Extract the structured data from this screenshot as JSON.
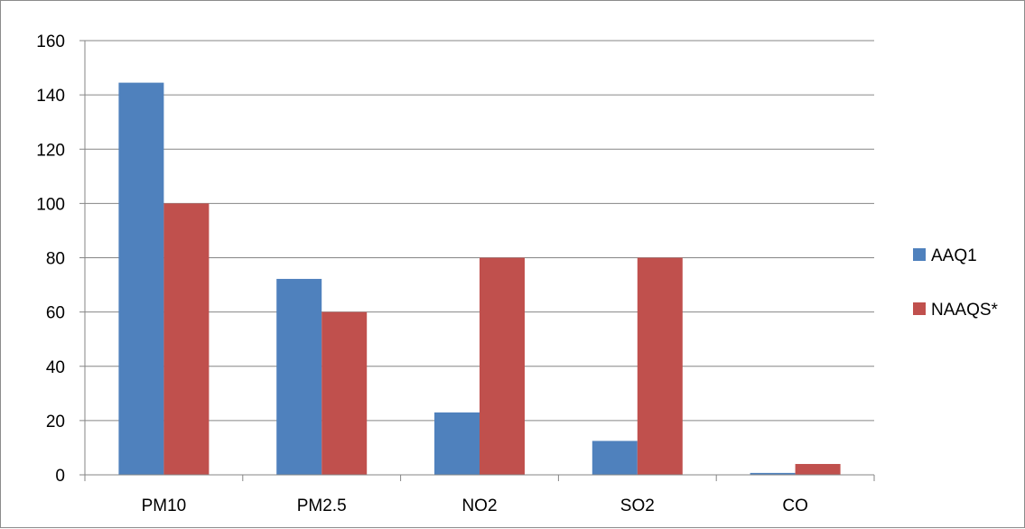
{
  "chart_data": {
    "type": "bar",
    "categories": [
      "PM10",
      "PM2.5",
      "NO2",
      "SO2",
      "CO"
    ],
    "series": [
      {
        "name": "AAQ1",
        "values": [
          144.5,
          72.2,
          23.0,
          12.5,
          0.7
        ],
        "color": "#4F81BD"
      },
      {
        "name": "NAAQS*",
        "values": [
          100,
          60,
          80,
          80,
          4
        ],
        "color": "#C0504D"
      }
    ],
    "ylim": [
      0,
      160
    ],
    "yticks": [
      "0",
      "20",
      "40",
      "60",
      "80",
      "100",
      "120",
      "140",
      "160"
    ],
    "grid": true,
    "legend_position": "right"
  }
}
